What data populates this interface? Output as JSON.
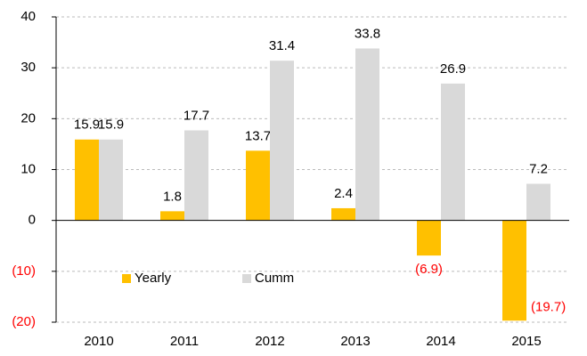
{
  "chart_data": {
    "type": "bar",
    "categories": [
      "2010",
      "2011",
      "2012",
      "2013",
      "2014",
      "2015"
    ],
    "series": [
      {
        "name": "Yearly",
        "color": "#FFC000",
        "values": [
          15.9,
          1.8,
          13.7,
          2.4,
          -6.9,
          -19.7
        ],
        "value_labels": [
          "15.9",
          "1.8",
          "13.7",
          "2.4",
          "(6.9)",
          "(19.7)"
        ]
      },
      {
        "name": "Cumm",
        "color": "#D9D9D9",
        "values": [
          15.9,
          17.7,
          31.4,
          33.8,
          26.9,
          7.2
        ]
      }
    ],
    "ylim": [
      -20,
      40
    ],
    "yticks": [
      {
        "value": -20,
        "label": "(20)"
      },
      {
        "value": -10,
        "label": "(10)"
      },
      0,
      10,
      20,
      30,
      40
    ],
    "grid": true,
    "negative_color": "#FF0000",
    "legend": "lower left"
  }
}
